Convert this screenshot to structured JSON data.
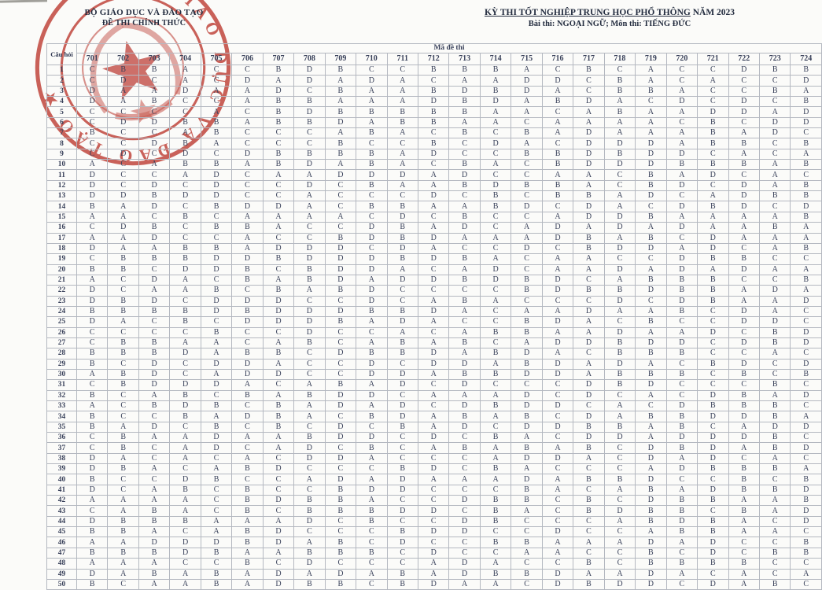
{
  "header": {
    "left": {
      "line1": "BỘ GIÁO DỤC VÀ ĐÀO TẠO",
      "line2": "ĐỀ THI CHÍNH THỨC"
    },
    "right": {
      "title_main": "KỲ THI TỐT NGHIỆP TRUNG HỌC PHỔ THÔNG",
      "title_year": " NĂM 2023",
      "subject": "Bài thi:  NGOẠI NGỮ; Môn thi: TIẾNG ĐỨC"
    }
  },
  "stamp": {
    "color": "#bf3a31",
    "ring_text": "BỘ GIÁO DỤC VÀ ĐÀO TẠO ★"
  },
  "table": {
    "corner_label": "Câu hỏi",
    "group_label": "Mã đề thi",
    "codes": [
      "701",
      "702",
      "703",
      "704",
      "705",
      "706",
      "707",
      "708",
      "709",
      "710",
      "711",
      "712",
      "713",
      "714",
      "715",
      "716",
      "717",
      "718",
      "719",
      "720",
      "721",
      "722",
      "723",
      "724"
    ],
    "rows": [
      {
        "q": "1",
        "a": "CBBACCBDBCCBBBACBCACCDBB"
      },
      {
        "q": "2",
        "a": "CDCACDADADACAADDCBACACCD"
      },
      {
        "q": "3",
        "a": "DAADAADCBAABDBDACBBACCBA"
      },
      {
        "q": "4",
        "a": "DABCCABBAAADBDABDACDCDCB"
      },
      {
        "q": "5",
        "a": "CCCCACBDBBBBBAACABAADDAD"
      },
      {
        "q": "6",
        "a": "CDDBBABBDABBAACAAAACBCDD"
      },
      {
        "q": "7",
        "a": "BCCABCCCABACBCBADAAABADC"
      },
      {
        "q": "8",
        "a": "CCDBACCCBCCBCDACDDDABBCB"
      },
      {
        "q": "9",
        "a": "CDCDCDBBBBADCCBBDBDDCACA"
      },
      {
        "q": "10",
        "a": "ACABBABDABACBACBDDDBBBAB"
      },
      {
        "q": "11",
        "a": "DCCADCAADDDADCCAACBADCAC"
      },
      {
        "q": "12",
        "a": "DCDCDCCDCBAABDBBACBDCDAB"
      },
      {
        "q": "13",
        "a": "DDBDDCCACCCDCBCBBADCADBB"
      },
      {
        "q": "14",
        "a": "BADCBDDACBBAABDCDACDBDCD"
      },
      {
        "q": "15",
        "a": "AACBCAAAACDCBCCADDBAAAAB"
      },
      {
        "q": "16",
        "a": "CDBCBBACCDBADCADADADAABA"
      },
      {
        "q": "17",
        "a": "AADCCACCBDBDAAADBABCDAAA"
      },
      {
        "q": "18",
        "a": "DAABBADDDCDACCDCBDDADCAB"
      },
      {
        "q": "19",
        "a": "CBBBDDBDDDBDBACAACCDBBCC"
      },
      {
        "q": "20",
        "a": "BBCDDBCBDDACADCAADADADAA"
      },
      {
        "q": "21",
        "a": "ACDACBABDADDBDBDCABBBCCB"
      },
      {
        "q": "22",
        "a": "DCAABCBABDCCCCBDBBDBBADA"
      },
      {
        "q": "23",
        "a": "DBDCDDDCCDCABACCCDCDBAAD"
      },
      {
        "q": "24",
        "a": "BBBBDBDDDBBDACAADAABCDAC"
      },
      {
        "q": "25",
        "a": "DACBCDDDBADACCBDACBCCDDC"
      },
      {
        "q": "26",
        "a": "CCCCBCCDCCACABBAADAADCBD"
      },
      {
        "q": "27",
        "a": "CBBAACABCABABCADDBDDCDBD"
      },
      {
        "q": "28",
        "a": "BBBDABBCDBBDABDACBBBCCAC"
      },
      {
        "q": "29",
        "a": "BCDCDDACCDCDDABDADACBDCD"
      },
      {
        "q": "30",
        "a": "ABDCADDCCDDABBDDABBBCBCB"
      },
      {
        "q": "31",
        "a": "CBDDDACABADCDCCCDBDCCCBC"
      },
      {
        "q": "32",
        "a": "BCABCBABDDCAAADCDCACDBAD"
      },
      {
        "q": "33",
        "a": "ACBDBCBADADCDBDDCACDBBBC"
      },
      {
        "q": "34",
        "a": "BCCBADBACBDABABCDABBDDBA"
      },
      {
        "q": "35",
        "a": "BADCBCBCDCBADCDDBBABCADD"
      },
      {
        "q": "36",
        "a": "CBAADAABDDCDCBACDDADDDBC"
      },
      {
        "q": "37",
        "a": "CBCADCADCBCABABABCDBDABD"
      },
      {
        "q": "38",
        "a": "DACACACDDACCCADDACDADCAC"
      },
      {
        "q": "39",
        "a": "DBACABDCCCBDCBACCCADBBBA"
      },
      {
        "q": "40",
        "a": "BCCDBCCADADAAADABBDCCBCB"
      },
      {
        "q": "41",
        "a": "DCABCBCCBDDCCCBACABADBBD"
      },
      {
        "q": "42",
        "a": "AAAACBDBBACCDBBCBCDBBAAB"
      },
      {
        "q": "43",
        "a": "CABACBCBBBDDCBACBDBBCBAD"
      },
      {
        "q": "44",
        "a": "DBBBAAADCBCCDBCCCABDBACD"
      },
      {
        "q": "45",
        "a": "BBACABDCCCBDDCCDCCABBAAC"
      },
      {
        "q": "46",
        "a": "AADDDBDABCDCCBBAAADADCCB"
      },
      {
        "q": "47",
        "a": "BBBDBAABBBCDCCAACCBCDCBB"
      },
      {
        "q": "48",
        "a": "AAACCBCDCCCADACCBCBBBBCC"
      },
      {
        "q": "49",
        "a": "DABABADADABADBBDAADACACA"
      },
      {
        "q": "50",
        "a": "BCAABADBBCBDAACDBDDCDABC"
      }
    ]
  }
}
